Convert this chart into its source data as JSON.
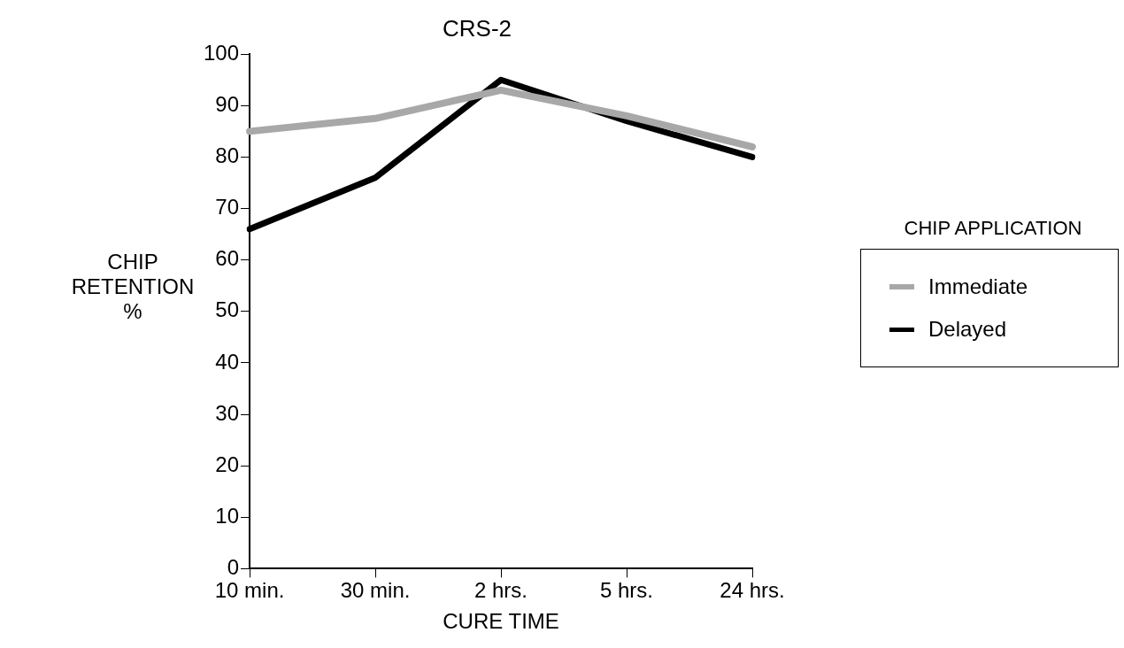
{
  "chart_data": {
    "type": "line",
    "title": "CRS-2",
    "xlabel": "CURE TIME",
    "ylabel": "CHIP RETENTION\n%",
    "legend_title": "CHIP APPLICATION",
    "categories": [
      "10 min.",
      "30 min.",
      "2 hrs.",
      "5 hrs.",
      "24 hrs."
    ],
    "series": [
      {
        "name": "Immediate",
        "color": "#a8a8a8",
        "values": [
          85,
          87.5,
          93,
          88,
          82
        ]
      },
      {
        "name": "Delayed",
        "color": "#000000",
        "values": [
          66,
          76,
          95,
          87,
          80
        ]
      }
    ],
    "ylim": [
      0,
      100
    ],
    "yticks": [
      0,
      10,
      20,
      30,
      40,
      50,
      60,
      70,
      80,
      90,
      100
    ],
    "grid": false,
    "legend": "right",
    "marker": "none",
    "line_style": "solid"
  }
}
